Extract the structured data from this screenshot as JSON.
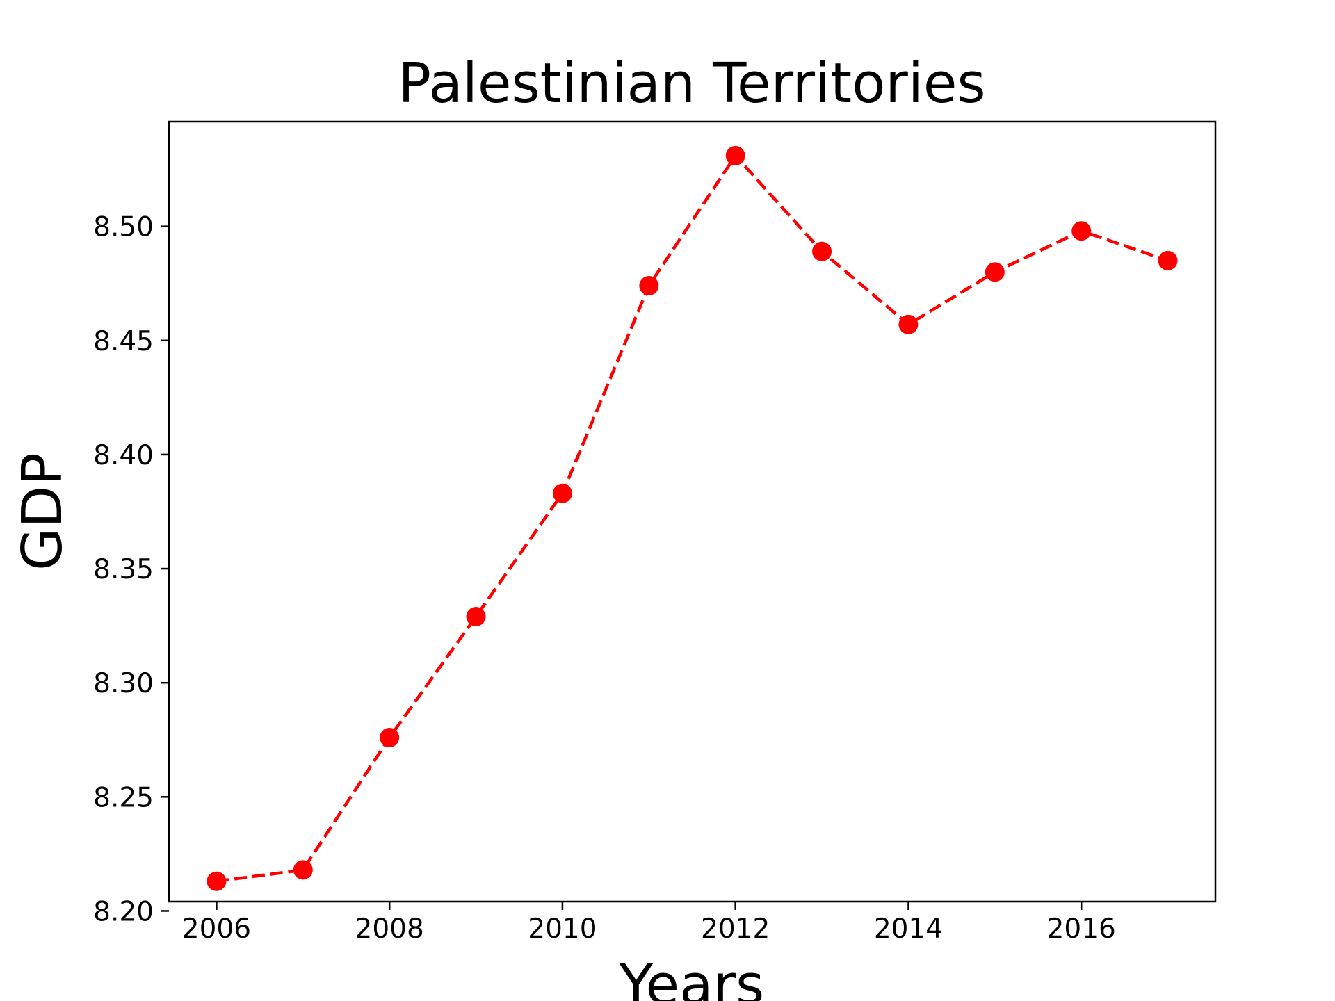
{
  "chart_data": {
    "type": "line",
    "title": "Palestinian Territories",
    "xlabel": "Years",
    "ylabel": "GDP",
    "x": [
      2006,
      2007,
      2008,
      2009,
      2010,
      2011,
      2012,
      2013,
      2014,
      2015,
      2016,
      2017
    ],
    "series": [
      {
        "values": [
          8.213,
          8.218,
          8.276,
          8.329,
          8.383,
          8.474,
          8.531,
          8.489,
          8.457,
          8.48,
          8.498,
          8.485
        ],
        "color": "#ff0000",
        "line_style": "dashed",
        "marker": "circle"
      }
    ],
    "xlim": [
      2005.45,
      2017.55
    ],
    "ylim": [
      8.2041,
      8.5459
    ],
    "xticks": [
      2006,
      2008,
      2010,
      2012,
      2014,
      2016
    ],
    "xtick_labels": [
      "2006",
      "2008",
      "2010",
      "2012",
      "2014",
      "2016"
    ],
    "yticks": [
      8.2,
      8.25,
      8.3,
      8.35,
      8.4,
      8.45,
      8.5
    ],
    "ytick_labels": [
      "8.20",
      "8.25",
      "8.30",
      "8.35",
      "8.40",
      "8.45",
      "8.50"
    ],
    "grid": false,
    "legend": "none"
  }
}
